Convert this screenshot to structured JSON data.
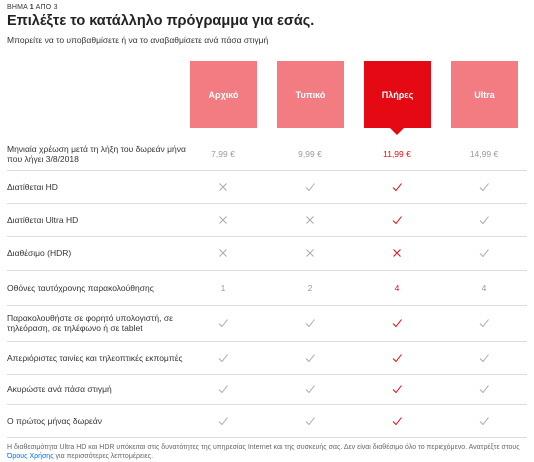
{
  "header": {
    "step": {
      "word": "ΒΗΜΑ",
      "current": "1",
      "of": "ΑΠΟ",
      "total": "3"
    },
    "title": "Επιλέξτε το κατάλληλο πρόγραμμα για εσάς.",
    "subtitle": "Μπορείτε να το υποβαθμίσετε ή να το αναβαθμίσετε ανά πάσα στιγμή"
  },
  "plans": [
    "Αρχικό",
    "Τυπικό",
    "Πλήρες",
    "Ultra"
  ],
  "selected_plan": 2,
  "rows": [
    {
      "label": "Μηνιαία χρέωση μετά τη λήξη του δωρεάν μήνα που λήγει 3/8/2018",
      "cells": [
        "7,99 €",
        "9,99 €",
        "11,99 €",
        "14,99 €"
      ]
    },
    {
      "label": "Διατίθεται HD",
      "cells": [
        false,
        true,
        true,
        true
      ]
    },
    {
      "label": "Διατίθεται Ultra HD",
      "cells": [
        false,
        false,
        true,
        true
      ]
    },
    {
      "label": "Διαθέσιμο (HDR)",
      "cells": [
        false,
        false,
        false,
        true
      ]
    },
    {
      "label": "Οθόνες ταυτόχρονης παρακολούθησης",
      "cells": [
        1,
        2,
        4,
        4
      ]
    },
    {
      "label": "Παρακολουθήστε σε φορητό υπολογιστή, σε τηλεόραση, σε τηλέφωνο ή σε tablet",
      "cells": [
        true,
        true,
        true,
        true
      ]
    },
    {
      "label": "Απεριόριστες ταινίες και τηλεοπτικές εκπομπές",
      "cells": [
        true,
        true,
        true,
        true
      ]
    },
    {
      "label": "Ακυρώστε ανά πάσα στιγμή",
      "cells": [
        true,
        true,
        true,
        true
      ]
    },
    {
      "label": "Ο πρώτος μήνας δωρεάν",
      "cells": [
        true,
        true,
        true,
        true
      ]
    }
  ],
  "footnote": {
    "before": "Η διαθεσιμότητα Ultra HD και HDR υπόκειται στις δυνατότητες της υπηρεσίας Internet και της συσκευής σας. Δεν είναι διαθέσιμο όλο το περιεχόμενο. Ανατρέξτε στους",
    "link": "Όρους Χρήσης",
    "after": "για περισσότερες λεπτομέρειες."
  }
}
